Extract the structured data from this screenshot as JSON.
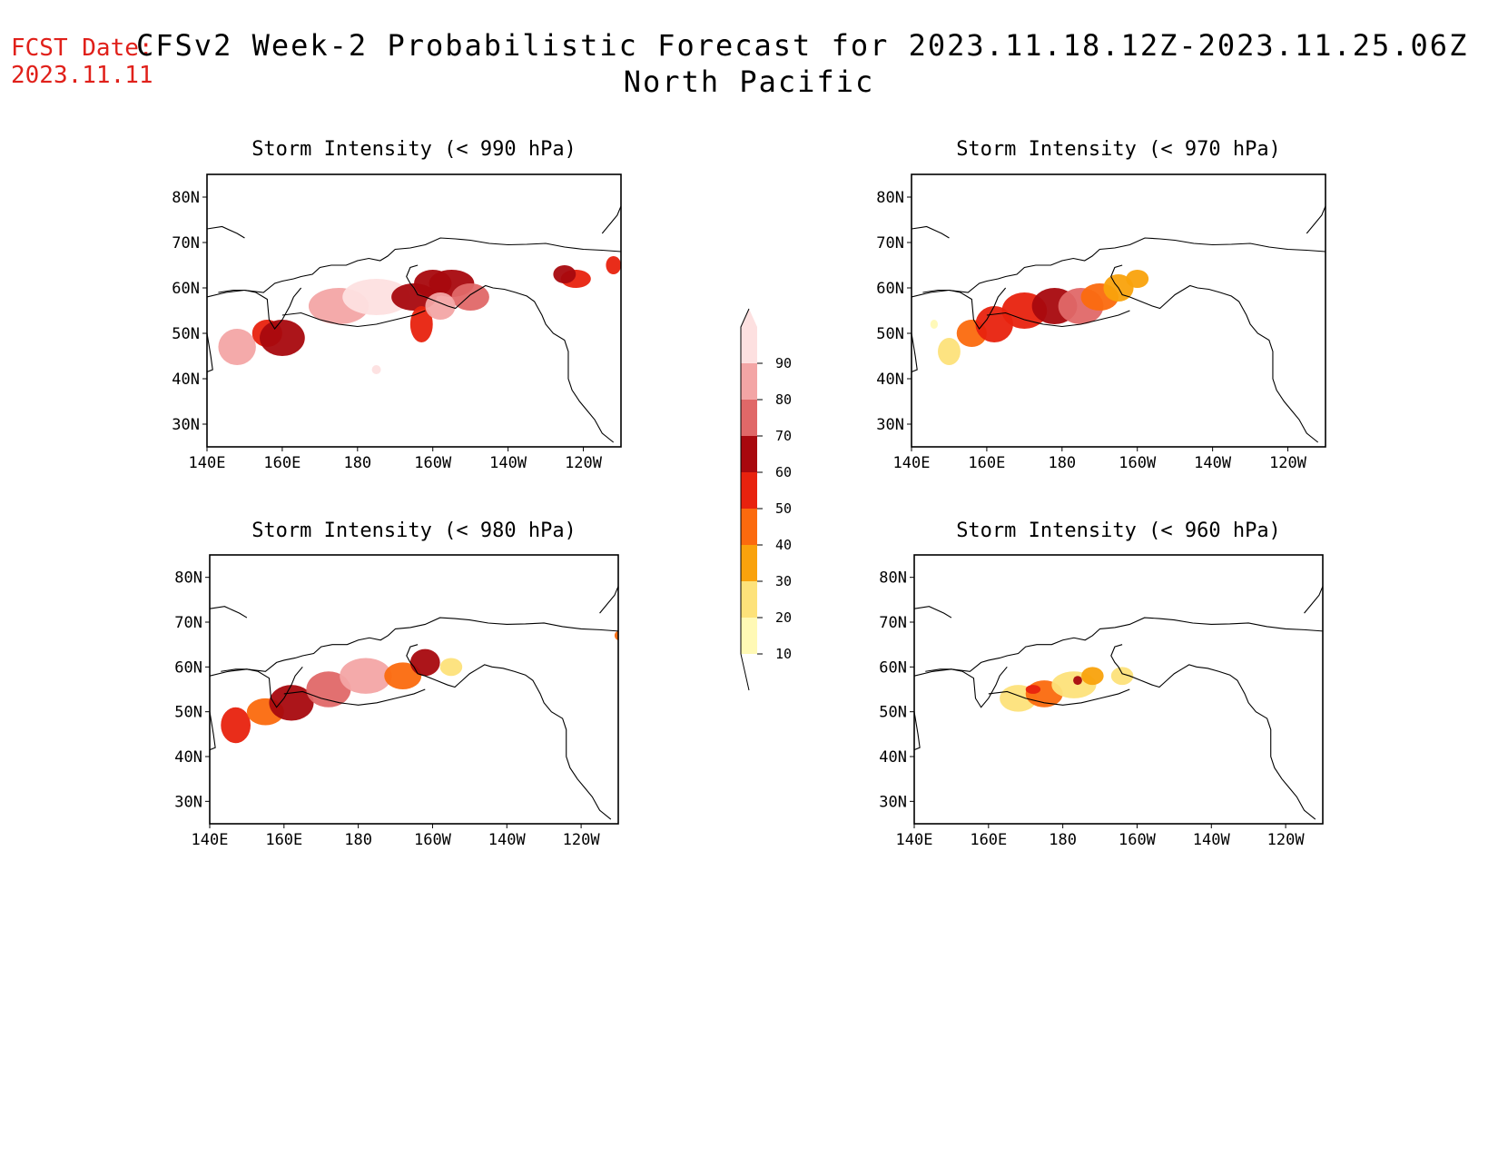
{
  "header": {
    "fcst_label": "FCST Date:",
    "fcst_date": "2023.11.11",
    "title": "CFSv2 Week-2 Probabilistic Forecast for 2023.11.18.12Z-2023.11.25.06Z",
    "subtitle": "North Pacific"
  },
  "lon_labels": [
    "140E",
    "160E",
    "180",
    "160W",
    "140W",
    "120W"
  ],
  "lat_labels": [
    "80N",
    "70N",
    "60N",
    "50N",
    "40N",
    "30N"
  ],
  "panels": [
    {
      "id": "p990",
      "title": "Storm Intensity (< 990 hPa)"
    },
    {
      "id": "p970",
      "title": "Storm Intensity (< 970 hPa)"
    },
    {
      "id": "p980",
      "title": "Storm Intensity (< 980 hPa)"
    },
    {
      "id": "p960",
      "title": "Storm Intensity (< 960 hPa)"
    }
  ],
  "colorbar": {
    "levels": [
      "10",
      "20",
      "30",
      "40",
      "50",
      "60",
      "70",
      "80",
      "90"
    ],
    "colors": [
      "#fff9b5",
      "#fde27a",
      "#f9a20c",
      "#fb6a0e",
      "#e8220e",
      "#a8080e",
      "#e06868",
      "#f3a5a5",
      "#fde0e0"
    ]
  }
}
